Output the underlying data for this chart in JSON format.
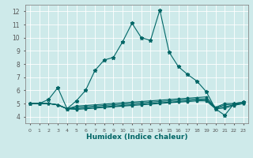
{
  "xlabel": "Humidex (Indice chaleur)",
  "bg_color": "#ceeaea",
  "line_color": "#006666",
  "grid_color": "#ffffff",
  "xlim": [
    -0.5,
    23.5
  ],
  "ylim": [
    3.5,
    12.5
  ],
  "yticks": [
    4,
    5,
    6,
    7,
    8,
    9,
    10,
    11,
    12
  ],
  "xticks": [
    0,
    1,
    2,
    3,
    4,
    5,
    6,
    7,
    8,
    9,
    10,
    11,
    12,
    13,
    14,
    15,
    16,
    17,
    18,
    19,
    20,
    21,
    22,
    23
  ],
  "lines": [
    [
      5.0,
      5.0,
      5.3,
      6.2,
      4.6,
      5.2,
      6.0,
      7.5,
      8.3,
      8.5,
      9.7,
      11.1,
      10.0,
      9.8,
      12.1,
      8.9,
      7.8,
      7.2,
      6.7,
      5.9,
      4.6,
      4.1,
      5.0,
      5.1
    ],
    [
      5.0,
      5.0,
      5.0,
      4.9,
      4.6,
      4.8,
      4.85,
      4.9,
      4.95,
      5.0,
      5.05,
      5.1,
      5.15,
      5.2,
      5.25,
      5.3,
      5.35,
      5.4,
      5.45,
      5.5,
      4.7,
      5.0,
      5.0,
      5.1
    ],
    [
      5.0,
      5.0,
      5.0,
      4.9,
      4.6,
      4.7,
      4.75,
      4.8,
      4.85,
      4.9,
      4.95,
      5.0,
      5.05,
      5.1,
      5.15,
      5.2,
      5.25,
      5.3,
      5.35,
      5.35,
      4.65,
      4.9,
      4.95,
      5.0
    ],
    [
      5.0,
      5.0,
      5.0,
      4.9,
      4.6,
      4.6,
      4.65,
      4.7,
      4.75,
      4.8,
      4.85,
      4.9,
      4.95,
      5.0,
      5.05,
      5.1,
      5.15,
      5.2,
      5.25,
      5.3,
      4.65,
      4.75,
      4.9,
      5.0
    ],
    [
      5.0,
      5.0,
      5.0,
      4.9,
      4.6,
      4.55,
      4.6,
      4.65,
      4.7,
      4.75,
      4.8,
      4.85,
      4.9,
      4.95,
      5.0,
      5.05,
      5.1,
      5.15,
      5.2,
      5.2,
      4.6,
      4.65,
      4.85,
      5.0
    ]
  ],
  "marker": "*",
  "markersize": 3.5,
  "linewidth": 0.8
}
